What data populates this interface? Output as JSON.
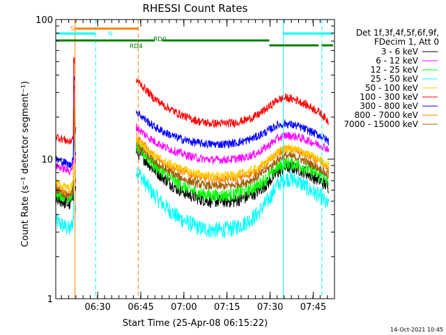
{
  "chart_data": {
    "type": "line",
    "title": "RHESSI Count Rates",
    "xlabel": "Start Time (25-Apr-08 06:15:22)",
    "ylabel": "Count Rate (s⁻¹ detector segment⁻¹)",
    "yscale": "log",
    "ylim": [
      1,
      100
    ],
    "xlim_minutes": [
      0,
      97
    ],
    "x_unit": "minutes after 06:15:22",
    "y_tick_labels": [
      "1",
      "10",
      "100"
    ],
    "x_tick_labels": [
      "06:30",
      "06:45",
      "07:00",
      "07:15",
      "07:30",
      "07:45"
    ],
    "x_tick_minutes": [
      14.6,
      29.6,
      44.6,
      59.6,
      74.6,
      89.6
    ],
    "legend": {
      "position": "right",
      "header1": "Det 1f,3f,4f,5f,6f,9f,",
      "header2": "FDecim 1, Att 0",
      "entries": [
        {
          "label": "3 - 6 keV",
          "color": "#000000"
        },
        {
          "label": "6 - 12 keV",
          "color": "#ff00ff"
        },
        {
          "label": "12 - 25 keV",
          "color": "#00ff00"
        },
        {
          "label": "25 - 50 keV",
          "color": "#00ffff"
        },
        {
          "label": "50 - 100 keV",
          "color": "#ffcc00"
        },
        {
          "label": "100 - 300 keV",
          "color": "#ff0000"
        },
        {
          "label": "300 - 800 keV",
          "color": "#0000ff"
        },
        {
          "label": "800 - 7000 keV",
          "color": "#ff8000"
        },
        {
          "label": "7000 - 15000 keV",
          "color": "#a05a00"
        }
      ]
    },
    "series_x_minutes": [
      0,
      3,
      5,
      7,
      28,
      31,
      34,
      38,
      42,
      46,
      50,
      54,
      58,
      62,
      66,
      70,
      74,
      77,
      80,
      84,
      88,
      92,
      95
    ],
    "series": [
      {
        "name": "3 - 6 keV",
        "color": "#000000",
        "seg1": [
          5.2,
          4.9,
          4.7,
          6.2
        ],
        "seg2": [
          11.5,
          10,
          8.5,
          7.2,
          6.2,
          5.6,
          5.2,
          5,
          5,
          5,
          5.3,
          5.8,
          6.8,
          8,
          8.8,
          8.6,
          7.8,
          7,
          6.3
        ]
      },
      {
        "name": "6 - 12 keV",
        "color": "#ff00ff",
        "seg1": [
          9,
          8.5,
          8.2,
          10
        ],
        "seg2": [
          17,
          15,
          13.5,
          12.2,
          11.3,
          10.6,
          10.1,
          9.9,
          9.9,
          10,
          10.3,
          11,
          12.5,
          14,
          14.8,
          14.5,
          13.5,
          12.6,
          11.8
        ]
      },
      {
        "name": "12 - 25 keV",
        "color": "#00ff00",
        "seg1": [
          5.8,
          5.5,
          5.3,
          6.8
        ],
        "seg2": [
          12.5,
          10.8,
          9.2,
          7.9,
          6.8,
          6.1,
          5.7,
          5.5,
          5.5,
          5.6,
          5.9,
          6.4,
          7.5,
          8.6,
          9.4,
          9.2,
          8.4,
          7.6,
          6.9
        ]
      },
      {
        "name": "25 - 50 keV",
        "color": "#00ffff",
        "seg1": [
          3.6,
          3.3,
          3.1,
          4.3
        ],
        "seg2": [
          8.5,
          6.8,
          5.6,
          4.6,
          3.9,
          3.5,
          3.2,
          3.1,
          3.1,
          3.2,
          3.5,
          4,
          5.1,
          6.5,
          7.3,
          7,
          6.1,
          5.4,
          4.6
        ]
      },
      {
        "name": "50 - 100 keV",
        "color": "#ffcc00",
        "seg1": [
          6.8,
          6.4,
          6.1,
          7.8
        ],
        "seg2": [
          14,
          12.2,
          10.8,
          9.6,
          8.8,
          8.2,
          7.8,
          7.6,
          7.6,
          7.7,
          8,
          8.6,
          9.8,
          11.2,
          12,
          11.7,
          10.8,
          9.9,
          9
        ]
      },
      {
        "name": "100 - 300 keV",
        "color": "#ff0000",
        "seg1": [
          14.5,
          13.8,
          13.2,
          16
        ],
        "seg2": [
          37,
          32,
          27.5,
          24,
          21.5,
          19.8,
          18.6,
          18,
          18,
          18.2,
          19,
          20.5,
          23.5,
          26.5,
          27.5,
          26.5,
          24,
          21.5,
          18.5
        ]
      },
      {
        "name": "300 - 800 keV",
        "color": "#0000ff",
        "seg1": [
          10,
          9.5,
          9,
          11.5
        ],
        "seg2": [
          22,
          19.3,
          17.2,
          15.5,
          14.3,
          13.5,
          13,
          12.8,
          12.8,
          13,
          13.5,
          14.5,
          16,
          17.5,
          18,
          17.3,
          16,
          14.7,
          13.4
        ]
      },
      {
        "name": "800 - 7000 keV",
        "color": "#ff8000",
        "seg1": [
          6.3,
          5.9,
          5.6,
          7.3
        ],
        "seg2": [
          14.5,
          12.5,
          10.5,
          9.3,
          8.5,
          7.9,
          7.4,
          7.2,
          7.2,
          7.3,
          7.6,
          8.2,
          9.5,
          11,
          11.8,
          11.5,
          10.5,
          9.4,
          8.4
        ]
      },
      {
        "name": "7000 - 15000 keV",
        "color": "#a05a00",
        "seg1": [
          6,
          5.6,
          5.3,
          7
        ],
        "seg2": [
          13,
          11.2,
          9.6,
          8.5,
          7.6,
          7,
          6.6,
          6.4,
          6.4,
          6.5,
          6.8,
          7.4,
          8.6,
          9.8,
          10.6,
          10.3,
          9.4,
          8.5,
          7.6
        ]
      }
    ],
    "vertical_markers": [
      {
        "minute": 6.7,
        "color": "#ff8000",
        "style": "solid"
      },
      {
        "minute": 13.9,
        "color": "#00ffff",
        "style": "dashed"
      },
      {
        "minute": 28.7,
        "color": "#ff8000",
        "style": "dashed"
      },
      {
        "minute": 79.2,
        "color": "#00ffff",
        "style": "solid"
      },
      {
        "minute": 92.6,
        "color": "#00ffff",
        "style": "dashed"
      }
    ],
    "flag_bars": [
      {
        "label": "S",
        "color": "#ff8000",
        "segments": [
          [
            6.7,
            28.6
          ]
        ]
      },
      {
        "label": "N",
        "color": "#00ffff",
        "segments": [
          [
            0,
            13.8
          ],
          [
            79.3,
            96.5
          ]
        ]
      },
      {
        "label": "RD0",
        "color": "#008000",
        "segments": [
          [
            0,
            34.5
          ],
          [
            37,
            74.3
          ]
        ]
      },
      {
        "label": "RD4",
        "color": "#008000",
        "segments": [
          [
            74.3,
            91.5
          ],
          [
            92.5,
            96.5
          ]
        ]
      }
    ],
    "timestamp": "14-Oct-2021 10:45"
  }
}
